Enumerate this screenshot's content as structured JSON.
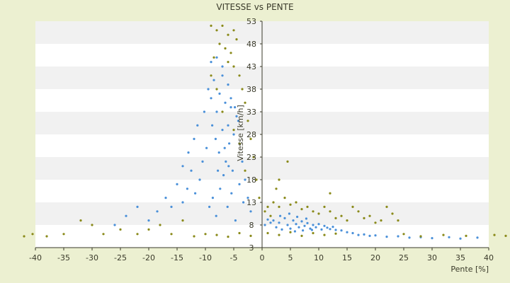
{
  "chart_data": {
    "type": "scatter",
    "title": "VITESSE vs PENTE",
    "xlabel": "Pente [%]",
    "ylabel": "Vitesse [km/h]",
    "xlim": [
      -40,
      40
    ],
    "ylim": [
      3,
      53
    ],
    "x_ticks": [
      "-40",
      "-35",
      "-30",
      "-25",
      "-20",
      "-15",
      "-10",
      "-5",
      "0",
      "5",
      "10",
      "15",
      "20",
      "25",
      "30",
      "35",
      "40"
    ],
    "y_ticks": [
      "3",
      "8",
      "13",
      "18",
      "23",
      "28",
      "33",
      "38",
      "43",
      "48",
      "53"
    ],
    "grid": "horizontal bands",
    "legend": "none",
    "colors": {
      "background": "#ecf0d1",
      "band_light": "#ffffff",
      "band_dark": "#f1f1f1",
      "axis": "#3a3a2a",
      "series_1": "#4a90d9",
      "series_2": "#8a8a1a"
    },
    "series": [
      {
        "color": "#4a90d9",
        "points": [
          [
            -9.5,
            38
          ],
          [
            -9.0,
            36
          ],
          [
            -8.5,
            40
          ],
          [
            -8.0,
            33
          ],
          [
            -7.5,
            37
          ],
          [
            -7.0,
            41
          ],
          [
            -6.5,
            35
          ],
          [
            -6.0,
            30
          ],
          [
            -5.5,
            34
          ],
          [
            -5.0,
            28
          ],
          [
            -4.5,
            32
          ],
          [
            -4.0,
            26
          ],
          [
            -8.8,
            30
          ],
          [
            -8.2,
            27
          ],
          [
            -7.6,
            24
          ],
          [
            -7.0,
            29
          ],
          [
            -6.4,
            22
          ],
          [
            -5.8,
            26
          ],
          [
            -5.2,
            20
          ],
          [
            -9.8,
            25
          ],
          [
            -10.5,
            22
          ],
          [
            -11.0,
            18
          ],
          [
            -11.8,
            15
          ],
          [
            -12.5,
            20
          ],
          [
            -13.2,
            16
          ],
          [
            -14.0,
            13
          ],
          [
            -15.0,
            17
          ],
          [
            -16.0,
            12
          ],
          [
            -17.0,
            14
          ],
          [
            -18.5,
            11
          ],
          [
            -20.0,
            9
          ],
          [
            -22.0,
            12
          ],
          [
            -24.0,
            10
          ],
          [
            -26.0,
            8
          ],
          [
            -12.0,
            27
          ],
          [
            -13.0,
            24
          ],
          [
            -14.0,
            21
          ],
          [
            -9.0,
            44
          ],
          [
            -8.0,
            45
          ],
          [
            -7.0,
            43
          ],
          [
            -6.0,
            39
          ],
          [
            -5.5,
            36
          ],
          [
            -4.8,
            34
          ],
          [
            -4.2,
            31
          ],
          [
            -3.5,
            22
          ],
          [
            -3.0,
            18
          ],
          [
            -2.5,
            14
          ],
          [
            -2.0,
            11
          ],
          [
            -9.3,
            12
          ],
          [
            -8.7,
            14
          ],
          [
            -8.1,
            10
          ],
          [
            -7.4,
            16
          ],
          [
            -6.8,
            19
          ],
          [
            -6.1,
            12
          ],
          [
            -5.4,
            15
          ],
          [
            -4.7,
            9
          ],
          [
            -4.0,
            17
          ],
          [
            -3.3,
            13
          ],
          [
            -10.2,
            33
          ],
          [
            -11.4,
            30
          ],
          [
            -7.8,
            20
          ],
          [
            -6.6,
            25
          ],
          [
            -5.9,
            21
          ],
          [
            2.0,
            9
          ],
          [
            2.5,
            7.5
          ],
          [
            3.0,
            8.5
          ],
          [
            3.5,
            7
          ],
          [
            4.0,
            9.5
          ],
          [
            4.5,
            8
          ],
          [
            5.0,
            7.2
          ],
          [
            5.5,
            9
          ],
          [
            6.0,
            8.2
          ],
          [
            6.5,
            7.5
          ],
          [
            7.0,
            8.8
          ],
          [
            7.5,
            7.8
          ],
          [
            8.0,
            8.4
          ],
          [
            8.5,
            7.2
          ],
          [
            9.0,
            8
          ],
          [
            9.5,
            7.5
          ],
          [
            10.0,
            8.2
          ],
          [
            10.5,
            7
          ],
          [
            11.0,
            7.8
          ],
          [
            11.5,
            7.4
          ],
          [
            12.0,
            7.1
          ],
          [
            12.5,
            7.6
          ],
          [
            13.0,
            6.9
          ],
          [
            14.0,
            6.8
          ],
          [
            15.0,
            6.4
          ],
          [
            16.0,
            6.2
          ],
          [
            17.0,
            5.8
          ],
          [
            18.0,
            5.9
          ],
          [
            19.0,
            5.6
          ],
          [
            20.0,
            5.7
          ],
          [
            22.0,
            5.4
          ],
          [
            24.0,
            5.5
          ],
          [
            26.0,
            5.2
          ],
          [
            28.0,
            5.3
          ],
          [
            30.0,
            5.1
          ],
          [
            33.0,
            5.3
          ],
          [
            35.0,
            5.0
          ],
          [
            38.0,
            5.2
          ],
          [
            3.2,
            10
          ],
          [
            4.8,
            10.5
          ],
          [
            6.2,
            9.8
          ],
          [
            7.8,
            9.4
          ],
          [
            5.8,
            6.6
          ],
          [
            7.2,
            6.8
          ],
          [
            8.8,
            6.9
          ],
          [
            1.5,
            8.5
          ],
          [
            1.0,
            9.2
          ],
          [
            0.5,
            8.0
          ]
        ]
      },
      {
        "color": "#8a8a1a",
        "points": [
          [
            -9.0,
            52
          ],
          [
            -8.0,
            51
          ],
          [
            -7.0,
            52
          ],
          [
            -6.0,
            50
          ],
          [
            -5.0,
            51
          ],
          [
            -4.5,
            49
          ],
          [
            -7.5,
            48
          ],
          [
            -6.5,
            47
          ],
          [
            -5.5,
            46
          ],
          [
            -8.5,
            45
          ],
          [
            -6.0,
            44
          ],
          [
            -5.0,
            43
          ],
          [
            -4.0,
            41
          ],
          [
            -3.5,
            38
          ],
          [
            -3.0,
            35
          ],
          [
            -2.5,
            31
          ],
          [
            -2.0,
            27
          ],
          [
            -1.5,
            23
          ],
          [
            -1.0,
            18
          ],
          [
            -0.5,
            14
          ],
          [
            -14.0,
            9
          ],
          [
            -16.0,
            6
          ],
          [
            -18.0,
            8
          ],
          [
            -20.0,
            7
          ],
          [
            -22.0,
            6
          ],
          [
            -25.0,
            7
          ],
          [
            -28.0,
            6
          ],
          [
            -30.0,
            8
          ],
          [
            -32.0,
            9
          ],
          [
            -35.0,
            6
          ],
          [
            -38.0,
            5.5
          ],
          [
            -40.5,
            6
          ],
          [
            -42.0,
            5.5
          ],
          [
            -10.0,
            6
          ],
          [
            -12.0,
            5.5
          ],
          [
            -8.0,
            5.8
          ],
          [
            -6.0,
            5.4
          ],
          [
            -4.0,
            6.2
          ],
          [
            -2.0,
            5.6
          ],
          [
            0.5,
            11
          ],
          [
            1.0,
            12
          ],
          [
            1.5,
            10
          ],
          [
            2.0,
            13
          ],
          [
            3.0,
            12
          ],
          [
            4.0,
            14
          ],
          [
            5.0,
            12.5
          ],
          [
            6.0,
            13
          ],
          [
            7.0,
            11.5
          ],
          [
            8.0,
            12
          ],
          [
            9.0,
            11
          ],
          [
            10.0,
            10.5
          ],
          [
            11.0,
            12
          ],
          [
            12.0,
            11
          ],
          [
            13.0,
            9.5
          ],
          [
            14.0,
            10
          ],
          [
            15.0,
            9
          ],
          [
            16.0,
            12
          ],
          [
            17.0,
            11
          ],
          [
            18.0,
            9.5
          ],
          [
            19.0,
            10
          ],
          [
            20.0,
            8.5
          ],
          [
            21.0,
            9
          ],
          [
            22.0,
            12
          ],
          [
            23.0,
            10.5
          ],
          [
            24.0,
            9
          ],
          [
            4.5,
            22
          ],
          [
            3.0,
            18
          ],
          [
            2.5,
            16
          ],
          [
            12.0,
            15
          ],
          [
            25.0,
            6
          ],
          [
            28.0,
            5.5
          ],
          [
            32.0,
            5.8
          ],
          [
            36.0,
            5.6
          ],
          [
            41.0,
            5.8
          ],
          [
            43.0,
            5.6
          ],
          [
            1.0,
            6.2
          ],
          [
            3.0,
            5.8
          ],
          [
            5.0,
            6.4
          ],
          [
            7.0,
            5.6
          ],
          [
            9.0,
            6.2
          ],
          [
            11.0,
            5.8
          ],
          [
            13.0,
            6.1
          ],
          [
            -7.0,
            33
          ],
          [
            -5.0,
            29
          ],
          [
            -9.0,
            41
          ],
          [
            -8.0,
            38
          ],
          [
            -4.0,
            26
          ],
          [
            -3.0,
            20
          ]
        ]
      }
    ]
  }
}
